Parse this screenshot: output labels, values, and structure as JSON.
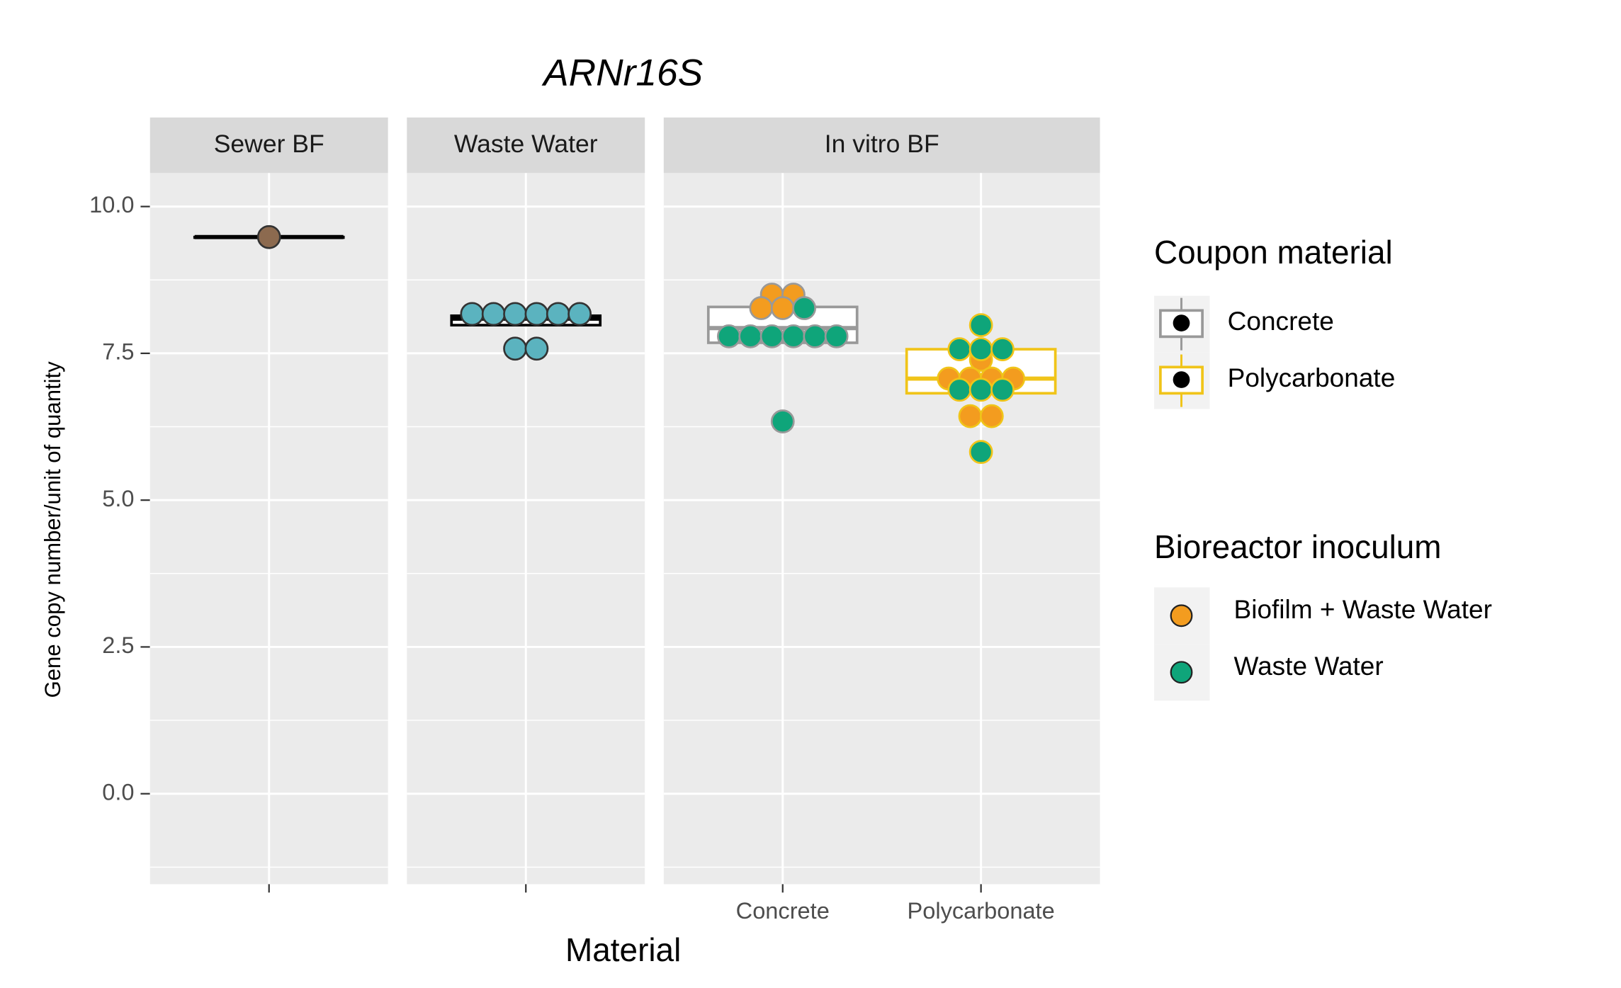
{
  "chart_data": {
    "type": "dot-box",
    "title": "ARNr16S",
    "x_label": "Material",
    "y_label": "Gene copy number/unit of quantity",
    "ylim": [
      -1.54,
      10.57
    ],
    "yticks": [
      {
        "value": 0,
        "label": "0.0"
      },
      {
        "value": 2.5,
        "label": "2.5"
      },
      {
        "value": 5,
        "label": "5.0"
      },
      {
        "value": 7.5,
        "label": "7.5"
      },
      {
        "value": 10,
        "label": "10.0"
      }
    ],
    "minor_yticks": [
      -1.25,
      1.25,
      3.75,
      6.25,
      8.75
    ],
    "grid": true,
    "series": [
      {
        "name": "Biofilm + Waste Water",
        "color": "#f39c1f"
      },
      {
        "name": "Waste Water",
        "color": "#0fa57a"
      }
    ],
    "facets": [
      {
        "name": "Sewer BF",
        "groups": [
          {
            "category": null,
            "q1": 9.48,
            "median": 9.48,
            "q3": 9.48,
            "box_color": "#000000",
            "values": [
              9.48
            ],
            "point_color": "#8c6a4f"
          }
        ]
      },
      {
        "name": "Waste Water",
        "groups": [
          {
            "category": null,
            "q1": 7.98,
            "median": 8.09,
            "q3": 8.14,
            "box_color": "#000000",
            "values": [
              8.17,
              8.17,
              8.17,
              8.17,
              8.17,
              8.17,
              7.58,
              7.58
            ],
            "point_color": "#5bb3bf"
          }
        ]
      },
      {
        "name": "In vitro BF",
        "annotation": "**",
        "groups": [
          {
            "category": "Concrete",
            "q1": 7.68,
            "median": 7.93,
            "q3": 8.29,
            "box_color": "#999999",
            "series_values": [
              [
                8.5,
                8.5,
                8.27,
                8.27
              ],
              [
                8.27,
                7.79,
                7.79,
                7.79,
                7.79,
                7.79,
                7.79,
                6.34
              ]
            ]
          },
          {
            "category": "Polycarbonate",
            "q1": 6.82,
            "median": 7.07,
            "q3": 7.57,
            "box_color": "#f0c419",
            "series_values": [
              [
                7.39,
                7.07,
                7.07,
                7.07,
                7.07,
                6.43,
                6.43
              ],
              [
                7.98,
                7.57,
                7.57,
                7.57,
                6.88,
                6.88,
                6.88,
                5.82
              ]
            ]
          }
        ]
      }
    ],
    "legend_titles": [
      "Coupon material",
      "Bioreactor inoculum"
    ],
    "coupon_legend": [
      {
        "name": "Concrete",
        "color": "#999999"
      },
      {
        "name": "Polycarbonate",
        "color": "#f0c419"
      }
    ]
  }
}
